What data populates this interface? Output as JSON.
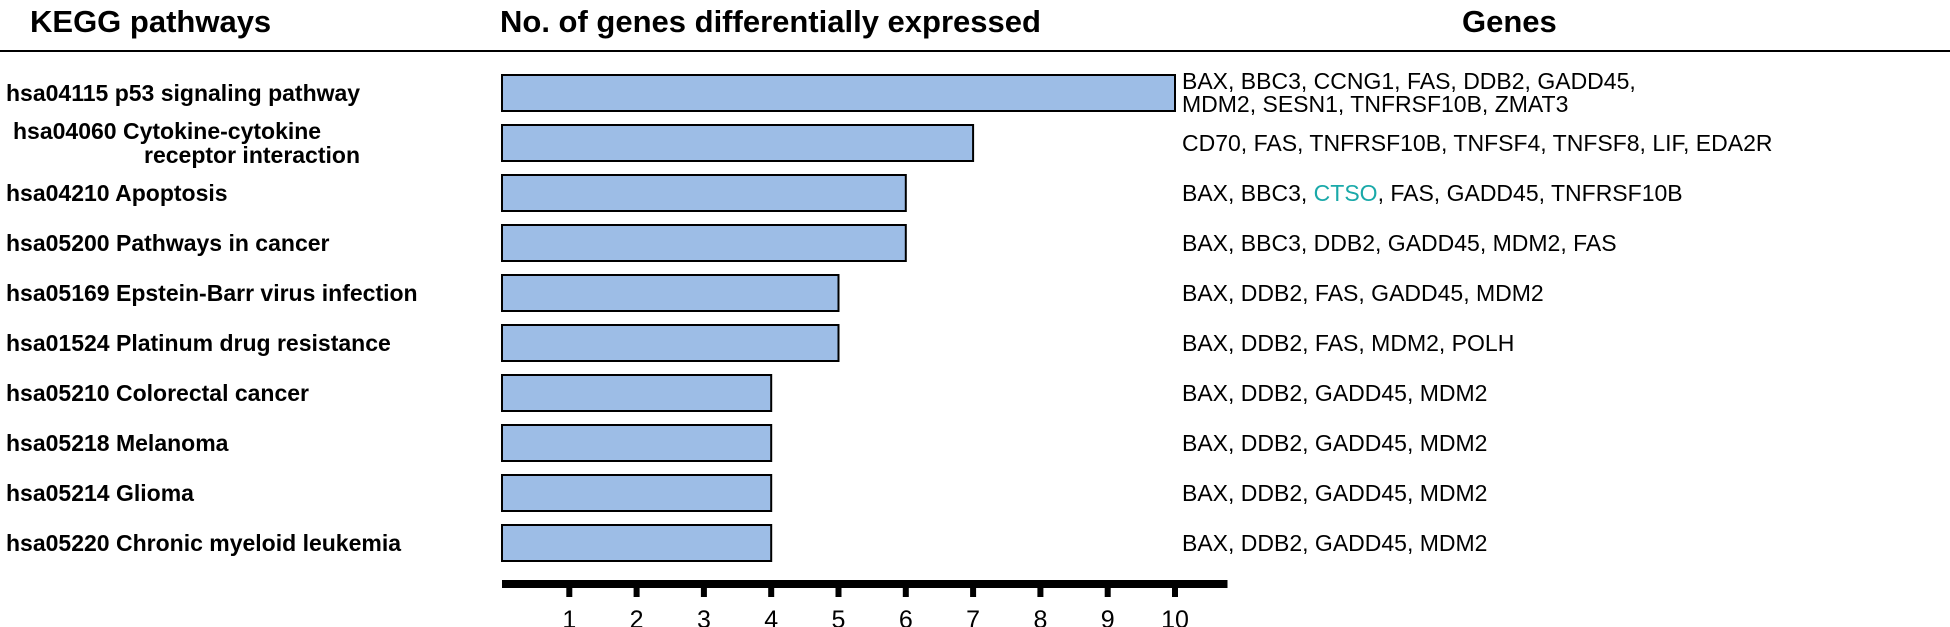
{
  "headers": {
    "pathways": "KEGG pathways",
    "count": "No. of genes differentially expressed",
    "genes": "Genes"
  },
  "colors": {
    "bar_fill": "#9dbde6",
    "bar_stroke": "#000000",
    "highlight_gene": "#1aa9a9",
    "axis": "#000000"
  },
  "chart_data": {
    "type": "bar",
    "orientation": "horizontal",
    "title": "",
    "xlabel": "No. of genes differentially expressed",
    "ylabel": "KEGG pathways",
    "xlim": [
      0,
      10
    ],
    "xticks": [
      1,
      2,
      3,
      4,
      5,
      6,
      7,
      8,
      9,
      10
    ],
    "grid": false,
    "categories": [
      [
        "hsa04115  p53  signaling pathway"
      ],
      [
        "hsa04060 Cytokine-cytokine",
        "receptor interaction"
      ],
      [
        "hsa04210 Apoptosis"
      ],
      [
        "hsa05200 Pathways in cancer"
      ],
      [
        "hsa05169 Epstein-Barr virus infection"
      ],
      [
        "hsa01524 Platinum drug resistance"
      ],
      [
        "hsa05210 Colorectal cancer"
      ],
      [
        "hsa05218 Melanoma"
      ],
      [
        "hsa05214 Glioma"
      ],
      [
        "hsa05220 Chronic myeloid leukemia"
      ]
    ],
    "values": [
      10,
      7,
      6,
      6,
      5,
      5,
      4,
      4,
      4,
      4
    ],
    "genes": [
      [
        [
          {
            "t": "BAX, BBC3, CCNG1, FAS, DDB2, GADD45,"
          }
        ],
        [
          {
            "t": "MDM2, SESN1, TNFRSF10B, ZMAT3"
          }
        ]
      ],
      [
        [
          {
            "t": "CD70, FAS, TNFRSF10B, TNFSF4, TNFSF8, LIF, EDA2R"
          }
        ]
      ],
      [
        [
          {
            "t": "BAX, BBC3, "
          },
          {
            "t": "CTSO",
            "hl": true
          },
          {
            "t": ", FAS, GADD45, TNFRSF10B"
          }
        ]
      ],
      [
        [
          {
            "t": "BAX, BBC3, DDB2, GADD45, MDM2, FAS"
          }
        ]
      ],
      [
        [
          {
            "t": "BAX, DDB2, FAS, GADD45, MDM2"
          }
        ]
      ],
      [
        [
          {
            "t": "BAX, DDB2, FAS, MDM2, POLH"
          }
        ]
      ],
      [
        [
          {
            "t": "BAX, DDB2, GADD45, MDM2"
          }
        ]
      ],
      [
        [
          {
            "t": "BAX, DDB2, GADD45, MDM2"
          }
        ]
      ],
      [
        [
          {
            "t": "BAX, DDB2, GADD45, MDM2"
          }
        ]
      ],
      [
        [
          {
            "t": "BAX, DDB2, GADD45, MDM2"
          }
        ]
      ]
    ]
  }
}
